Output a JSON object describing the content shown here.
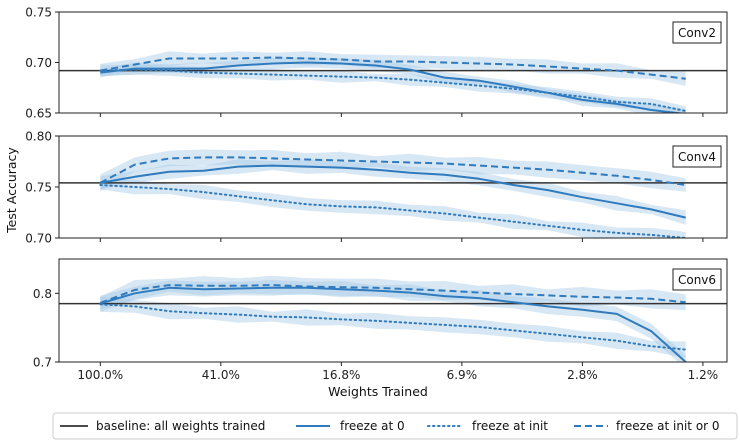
{
  "chart_data": {
    "type": "line",
    "ylabel": "Test Accuracy",
    "xlabel": "Weights Trained",
    "x_tick_labels": [
      "100.0%",
      "41.0%",
      "16.8%",
      "6.9%",
      "2.8%",
      "1.2%"
    ],
    "x_tick_positions": [
      0,
      3.5,
      7,
      10.5,
      14,
      17.5
    ],
    "x": [
      0,
      1,
      2,
      3,
      4,
      5,
      6,
      7,
      8,
      9,
      10,
      11,
      12,
      13,
      14,
      15,
      16,
      17
    ],
    "colors": {
      "series": "#2f7bbd",
      "band": "#a8c9e6",
      "baseline": "#333333"
    },
    "legend": {
      "placement": "bottom",
      "entries": [
        {
          "label": "baseline: all weights trained",
          "style": "baseline"
        },
        {
          "label": "freeze at 0",
          "style": "solid"
        },
        {
          "label": "freeze at init",
          "style": "dotted"
        },
        {
          "label": "freeze at init or 0",
          "style": "dashed"
        }
      ]
    },
    "panels": [
      {
        "name": "Conv2",
        "ylim": [
          0.65,
          0.75
        ],
        "yticks": [
          0.65,
          0.7,
          0.75
        ],
        "ytick_labels": [
          "0.65",
          "0.70",
          "0.75"
        ],
        "baseline": 0.692,
        "series": [
          {
            "name": "freeze at 0",
            "style": "solid",
            "values": [
              0.69,
              0.694,
              0.694,
              0.694,
              0.697,
              0.699,
              0.7,
              0.699,
              0.697,
              0.693,
              0.685,
              0.682,
              0.676,
              0.67,
              0.663,
              0.659,
              0.653,
              0.649
            ]
          },
          {
            "name": "freeze at init",
            "style": "dotted",
            "values": [
              0.692,
              0.693,
              0.692,
              0.69,
              0.689,
              0.688,
              0.687,
              0.686,
              0.685,
              0.683,
              0.68,
              0.677,
              0.674,
              0.67,
              0.666,
              0.661,
              0.659,
              0.652
            ]
          },
          {
            "name": "freeze at init or 0",
            "style": "dashed",
            "values": [
              0.692,
              0.698,
              0.704,
              0.704,
              0.704,
              0.705,
              0.704,
              0.703,
              0.701,
              0.701,
              0.7,
              0.699,
              0.698,
              0.696,
              0.694,
              0.692,
              0.688,
              0.684
            ]
          }
        ]
      },
      {
        "name": "Conv4",
        "ylim": [
          0.7,
          0.8
        ],
        "yticks": [
          0.7,
          0.75,
          0.8
        ],
        "ytick_labels": [
          "0.70",
          "0.75",
          "0.80"
        ],
        "baseline": 0.754,
        "series": [
          {
            "name": "freeze at 0",
            "style": "solid",
            "values": [
              0.754,
              0.76,
              0.765,
              0.766,
              0.77,
              0.771,
              0.77,
              0.769,
              0.767,
              0.764,
              0.762,
              0.758,
              0.752,
              0.747,
              0.74,
              0.734,
              0.728,
              0.72
            ]
          },
          {
            "name": "freeze at init",
            "style": "dotted",
            "values": [
              0.752,
              0.75,
              0.748,
              0.745,
              0.741,
              0.737,
              0.733,
              0.731,
              0.73,
              0.727,
              0.724,
              0.72,
              0.716,
              0.712,
              0.708,
              0.705,
              0.703,
              0.7
            ]
          },
          {
            "name": "freeze at init or 0",
            "style": "dashed",
            "values": [
              0.754,
              0.772,
              0.778,
              0.779,
              0.779,
              0.778,
              0.777,
              0.776,
              0.775,
              0.774,
              0.773,
              0.771,
              0.769,
              0.767,
              0.764,
              0.761,
              0.757,
              0.752
            ]
          }
        ]
      },
      {
        "name": "Conv6",
        "ylim": [
          0.7,
          0.85
        ],
        "yticks": [
          0.7,
          0.8
        ],
        "ytick_labels": [
          "0.7",
          "0.8"
        ],
        "baseline": 0.785,
        "series": [
          {
            "name": "freeze at 0",
            "style": "solid",
            "values": [
              0.785,
              0.8,
              0.808,
              0.806,
              0.807,
              0.808,
              0.808,
              0.806,
              0.804,
              0.801,
              0.796,
              0.793,
              0.787,
              0.781,
              0.776,
              0.77,
              0.745,
              0.7
            ]
          },
          {
            "name": "freeze at init",
            "style": "dotted",
            "values": [
              0.784,
              0.781,
              0.774,
              0.771,
              0.769,
              0.766,
              0.765,
              0.762,
              0.76,
              0.757,
              0.754,
              0.751,
              0.746,
              0.741,
              0.736,
              0.731,
              0.723,
              0.718
            ]
          },
          {
            "name": "freeze at init or 0",
            "style": "dashed",
            "values": [
              0.786,
              0.805,
              0.812,
              0.811,
              0.811,
              0.812,
              0.81,
              0.809,
              0.808,
              0.806,
              0.804,
              0.801,
              0.799,
              0.797,
              0.795,
              0.794,
              0.792,
              0.787
            ]
          }
        ]
      }
    ]
  }
}
